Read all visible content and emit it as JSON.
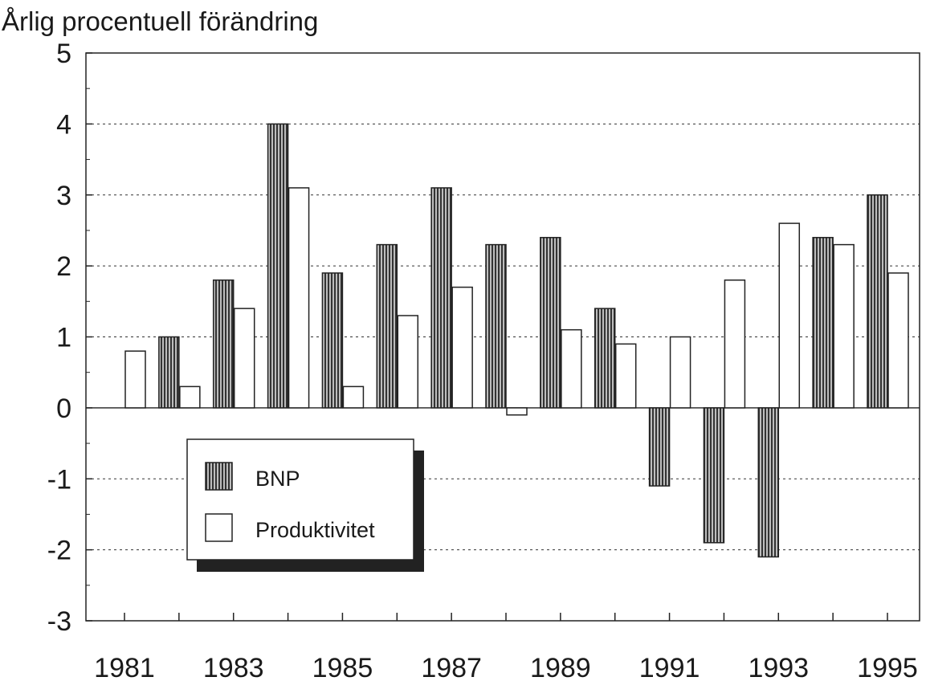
{
  "chart_data": {
    "type": "bar",
    "title": "Årlig procentuell förändring",
    "xlabel": "",
    "ylabel": "Årlig procentuell förändring",
    "ylim": [
      -3,
      5
    ],
    "yticks": [
      "5",
      "4",
      "3",
      "2",
      "1",
      "0",
      "-1",
      "-2",
      "-3"
    ],
    "ytick_values": [
      5,
      4,
      3,
      2,
      1,
      0,
      -1,
      -2,
      -3
    ],
    "categories": [
      "1981",
      "1982",
      "1983",
      "1984",
      "1985",
      "1986",
      "1987",
      "1988",
      "1989",
      "1990",
      "1991",
      "1992",
      "1993",
      "1994",
      "1995"
    ],
    "xtick_labels": [
      "1981",
      "1983",
      "1985",
      "1987",
      "1989",
      "1991",
      "1993",
      "1995"
    ],
    "grid": "horizontal dotted",
    "legend_position": "lower-left",
    "series": [
      {
        "name": "BNP",
        "style": "hatched",
        "values": [
          0,
          1.0,
          1.8,
          4.0,
          1.9,
          2.3,
          3.1,
          2.3,
          2.4,
          1.4,
          -1.1,
          -1.9,
          -2.1,
          2.4,
          3.0
        ]
      },
      {
        "name": "Produktivitet",
        "style": "white",
        "values": [
          0.8,
          0.3,
          1.4,
          3.1,
          0.3,
          1.3,
          1.7,
          -0.1,
          1.1,
          0.9,
          1.0,
          1.8,
          2.6,
          2.3,
          1.9
        ]
      }
    ]
  }
}
